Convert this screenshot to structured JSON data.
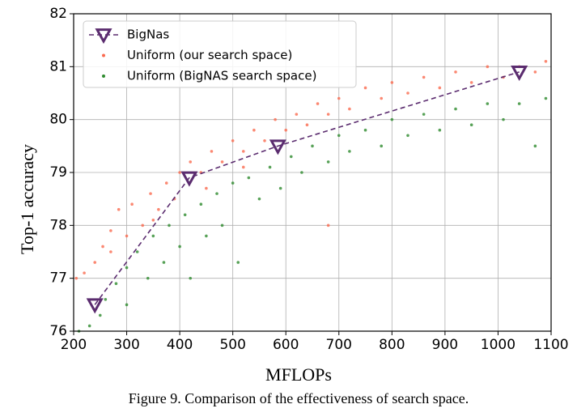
{
  "chart_data": {
    "type": "scatter",
    "caption": "Figure 9. Comparison of the effectiveness of search space.",
    "x_label": "MFLOPs",
    "y_label": "Top-1 accuracy",
    "xlim": [
      200,
      1100
    ],
    "ylim": [
      76,
      82
    ],
    "xticks": [
      200,
      300,
      400,
      500,
      600,
      700,
      800,
      900,
      1000,
      1100
    ],
    "yticks": [
      76,
      77,
      78,
      79,
      80,
      81,
      82
    ],
    "grid": true,
    "legend": "upper left",
    "series": [
      {
        "name": "BigNas",
        "color": "#5b2c6f",
        "linestyle": "dashed",
        "marker": "triangle-down",
        "x": [
          240,
          418,
          585,
          1040
        ],
        "values": [
          76.5,
          78.9,
          79.5,
          80.9
        ]
      },
      {
        "name": "Uniform (our search space)",
        "color": "#fa6a4f",
        "marker": "dot",
        "x": [
          205,
          220,
          240,
          255,
          270,
          285,
          300,
          310,
          330,
          345,
          360,
          375,
          390,
          400,
          420,
          440,
          460,
          480,
          500,
          520,
          540,
          560,
          580,
          600,
          620,
          640,
          660,
          680,
          700,
          720,
          750,
          780,
          800,
          830,
          860,
          890,
          920,
          950,
          980,
          1010,
          1040,
          1070,
          1090,
          270,
          350,
          450,
          520,
          680
        ],
        "values": [
          77.0,
          77.1,
          77.3,
          77.6,
          77.9,
          78.3,
          77.8,
          78.4,
          78.0,
          78.6,
          78.3,
          78.8,
          78.5,
          79.0,
          79.2,
          79.0,
          79.4,
          79.2,
          79.6,
          79.4,
          79.8,
          79.6,
          80.0,
          79.8,
          80.1,
          79.9,
          80.3,
          80.1,
          80.4,
          80.2,
          80.6,
          80.4,
          80.7,
          80.5,
          80.8,
          80.6,
          80.9,
          80.7,
          81.0,
          80.8,
          81.0,
          80.9,
          81.1,
          77.5,
          78.1,
          78.7,
          79.1,
          78.0
        ]
      },
      {
        "name": "Uniform (BigNAS search space)",
        "color": "#2e8b2e",
        "marker": "dot",
        "x": [
          210,
          230,
          250,
          260,
          280,
          300,
          300,
          320,
          340,
          350,
          370,
          380,
          400,
          410,
          420,
          440,
          450,
          470,
          480,
          500,
          510,
          530,
          550,
          570,
          590,
          610,
          630,
          650,
          680,
          700,
          720,
          750,
          780,
          800,
          830,
          860,
          890,
          920,
          950,
          980,
          1010,
          1040,
          1070,
          1090
        ],
        "values": [
          76.0,
          76.1,
          76.3,
          76.6,
          76.9,
          77.2,
          76.5,
          77.5,
          77.0,
          77.8,
          77.3,
          78.0,
          77.6,
          78.2,
          77.0,
          78.4,
          77.8,
          78.6,
          78.0,
          78.8,
          77.3,
          78.9,
          78.5,
          79.1,
          78.7,
          79.3,
          79.0,
          79.5,
          79.2,
          79.7,
          79.4,
          79.8,
          79.5,
          80.0,
          79.7,
          80.1,
          79.8,
          80.2,
          79.9,
          80.3,
          80.0,
          80.3,
          79.5,
          80.4
        ]
      }
    ]
  }
}
